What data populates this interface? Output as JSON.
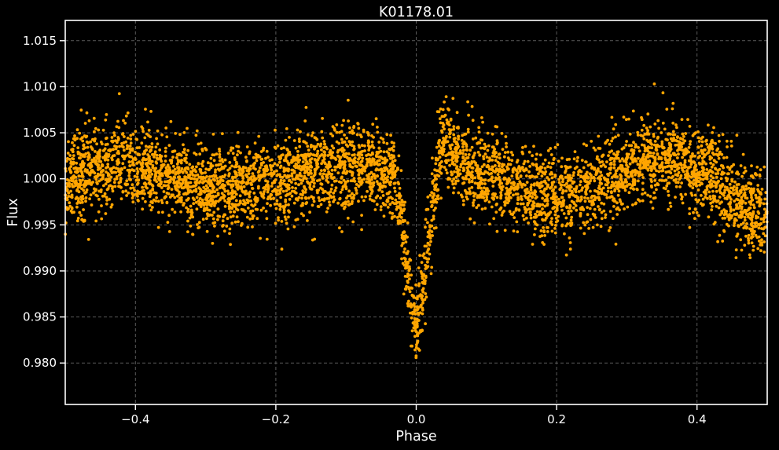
{
  "chart_data": {
    "type": "scatter",
    "title": "K01178.01",
    "xlabel": "Phase",
    "ylabel": "Flux",
    "xlim": [
      -0.5,
      0.5
    ],
    "ylim": [
      0.9755,
      1.0172
    ],
    "x_ticks": [
      -0.4,
      -0.2,
      0.0,
      0.2,
      0.4
    ],
    "x_tick_labels": [
      "−0.4",
      "−0.2",
      "0.0",
      "0.2",
      "0.4"
    ],
    "y_ticks": [
      0.98,
      0.985,
      0.99,
      0.995,
      1.0,
      1.005,
      1.01,
      1.015
    ],
    "y_tick_labels": [
      "0.980",
      "0.985",
      "0.990",
      "0.995",
      "1.000",
      "1.005",
      "1.010",
      "1.015"
    ],
    "grid": true,
    "colors": {
      "background": "#000000",
      "points": "#ffa500",
      "axes": "#ffffff",
      "grid": "#5a5a5a"
    },
    "series": [
      {
        "points": [
          [
            -0.5,
            0.9995
          ],
          [
            -0.48,
            1.0002
          ],
          [
            -0.46,
            1.001
          ],
          [
            -0.44,
            1.0015
          ],
          [
            -0.42,
            1.0018
          ],
          [
            -0.4,
            1.0016
          ],
          [
            -0.38,
            1.001
          ],
          [
            -0.36,
            1.0003
          ],
          [
            -0.34,
            0.9998
          ],
          [
            -0.32,
            0.9995
          ],
          [
            -0.3,
            0.9993
          ],
          [
            -0.28,
            0.9991
          ],
          [
            -0.26,
            0.999
          ],
          [
            -0.24,
            0.9992
          ],
          [
            -0.22,
            0.9994
          ],
          [
            -0.2,
            0.9998
          ],
          [
            -0.18,
            1.0003
          ],
          [
            -0.16,
            1.0007
          ],
          [
            -0.14,
            1.001
          ],
          [
            -0.12,
            1.0011
          ],
          [
            -0.1,
            1.0012
          ],
          [
            -0.08,
            1.0011
          ],
          [
            -0.06,
            1.001
          ],
          [
            -0.04,
            1.0005
          ],
          [
            -0.03,
            1.0
          ],
          [
            -0.025,
            0.998
          ],
          [
            -0.02,
            0.995
          ],
          [
            -0.015,
            0.992
          ],
          [
            -0.01,
            0.989
          ],
          [
            -0.005,
            0.986
          ],
          [
            0.0,
            0.9852
          ],
          [
            0.005,
            0.9862
          ],
          [
            0.01,
            0.9885
          ],
          [
            0.015,
            0.9915
          ],
          [
            0.02,
            0.9945
          ],
          [
            0.025,
            0.9975
          ],
          [
            0.03,
            1.001
          ],
          [
            0.035,
            1.0032
          ],
          [
            0.04,
            1.0038
          ],
          [
            0.045,
            1.0034
          ],
          [
            0.05,
            1.0028
          ],
          [
            0.06,
            1.002
          ],
          [
            0.08,
            1.0012
          ],
          [
            0.1,
            1.0005
          ],
          [
            0.12,
            1.0
          ],
          [
            0.14,
            0.9995
          ],
          [
            0.16,
            0.9989
          ],
          [
            0.18,
            0.9983
          ],
          [
            0.2,
            0.998
          ],
          [
            0.22,
            0.9982
          ],
          [
            0.24,
            0.9988
          ],
          [
            0.26,
            0.9995
          ],
          [
            0.28,
            1.0003
          ],
          [
            0.3,
            1.001
          ],
          [
            0.32,
            1.0016
          ],
          [
            0.34,
            1.0019
          ],
          [
            0.36,
            1.002
          ],
          [
            0.38,
            1.0018
          ],
          [
            0.4,
            1.0012
          ],
          [
            0.42,
            1.0003
          ],
          [
            0.44,
            0.9988
          ],
          [
            0.46,
            0.9972
          ],
          [
            0.48,
            0.9962
          ],
          [
            0.5,
            0.996
          ]
        ],
        "scatter_std": 0.0022
      }
    ]
  }
}
